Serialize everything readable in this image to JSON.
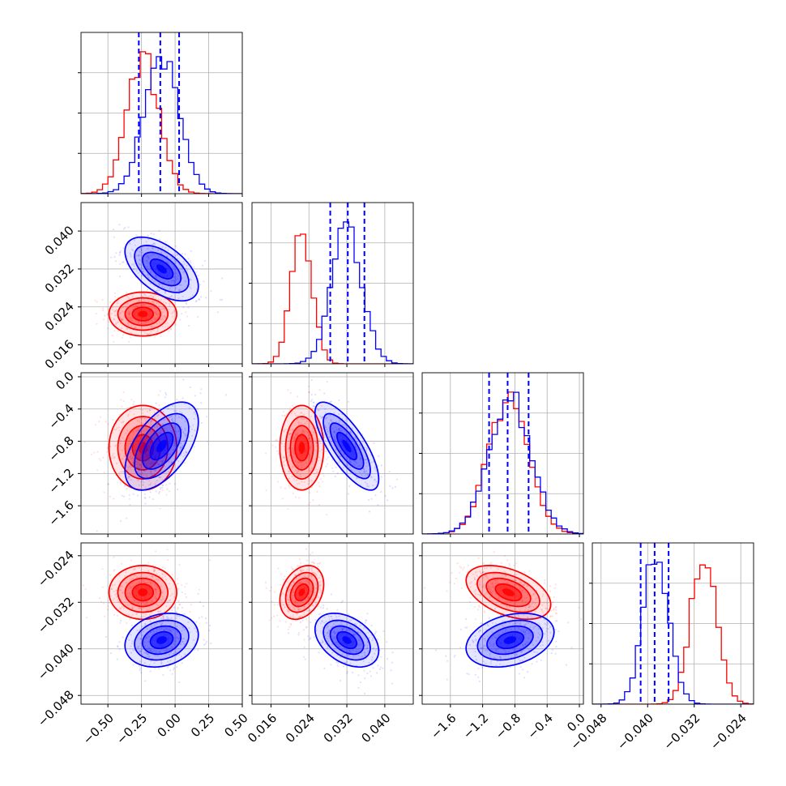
{
  "chart_data": {
    "type": "corner",
    "parameters": [
      {
        "range": [
          -0.7,
          0.5
        ],
        "ticks": [
          -0.5,
          -0.25,
          0.0,
          0.25,
          0.5
        ],
        "tick_labels": [
          "−0.50",
          "−0.25",
          "0.00",
          "0.25",
          "0.50"
        ]
      },
      {
        "range": [
          0.012,
          0.046
        ],
        "ticks": [
          0.016,
          0.024,
          0.032,
          0.04
        ],
        "tick_labels": [
          "0.016",
          "0.024",
          "0.032",
          "0.040"
        ]
      },
      {
        "range": [
          -1.95,
          0.05
        ],
        "ticks": [
          -1.6,
          -1.2,
          -0.8,
          -0.4,
          0.0
        ],
        "tick_labels": [
          "−1.6",
          "−1.2",
          "−0.8",
          "−0.4",
          "0.0"
        ]
      },
      {
        "range": [
          -0.0495,
          -0.0218
        ],
        "ticks": [
          -0.048,
          -0.04,
          -0.032,
          -0.024
        ],
        "tick_labels": [
          "−0.048",
          "−0.040",
          "−0.032",
          "−0.024"
        ]
      }
    ],
    "series": [
      {
        "color": "#ff0000",
        "mean": [
          -0.24,
          0.0225,
          -0.88,
          -0.0303
        ],
        "sd": [
          0.12,
          0.0022,
          0.25,
          0.0022
        ]
      },
      {
        "color": "#0000ff",
        "mean": [
          -0.1,
          0.032,
          -0.86,
          -0.0385
        ],
        "sd": [
          0.13,
          0.0032,
          0.26,
          0.0022
        ]
      }
    ],
    "correlations": [
      {
        "pair": [
          0,
          1
        ],
        "red": 0.0,
        "blue": -0.55
      },
      {
        "pair": [
          0,
          2
        ],
        "red": 0.0,
        "blue": 0.55
      },
      {
        "pair": [
          1,
          2
        ],
        "red": 0.0,
        "blue": -0.75
      },
      {
        "pair": [
          0,
          3
        ],
        "red": 0.0,
        "blue": 0.2
      },
      {
        "pair": [
          1,
          3
        ],
        "red": 0.3,
        "blue": -0.4
      },
      {
        "pair": [
          2,
          3
        ],
        "red": -0.45,
        "blue": 0.3
      }
    ],
    "quantile_lines": {
      "color": "#0000ff",
      "values": [
        [
          -0.27,
          -0.11,
          0.03
        ],
        [
          0.0285,
          0.0322,
          0.0357
        ],
        [
          -1.12,
          -0.89,
          -0.63
        ],
        [
          -0.0412,
          -0.0388,
          -0.0364
        ]
      ]
    },
    "grid": true
  }
}
